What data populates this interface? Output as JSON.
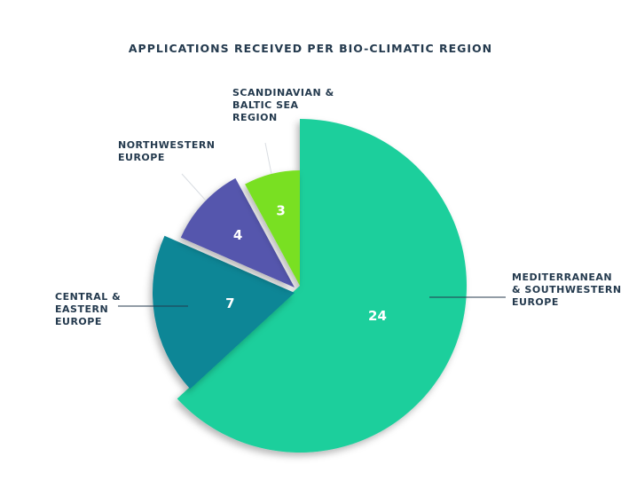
{
  "chart_data": {
    "type": "pie",
    "title": "APPLICATIONS RECEIVED PER BIO-CLIMATIC REGION",
    "categories": [
      "MEDITERRANEAN & SOUTHWESTERN EUROPE",
      "CENTRAL & EASTERN EUROPE",
      "NORTHWESTERN EUROPE",
      "SCANDINAVIAN & BALTIC SEA REGION"
    ],
    "category_lines": [
      [
        "MEDITERRANEAN",
        "& SOUTHWESTERN",
        "EUROPE"
      ],
      [
        "CENTRAL &",
        "EASTERN",
        "EUROPE"
      ],
      [
        "NORTHWESTERN",
        "EUROPE"
      ],
      [
        "SCANDINAVIAN &",
        "BALTIC SEA",
        "REGION"
      ]
    ],
    "values": [
      24,
      7,
      4,
      3
    ],
    "value_labels": [
      "24",
      "7",
      "4",
      "3"
    ],
    "colors": [
      "#1dcf9c",
      "#0a8696",
      "#5557ad",
      "#79e021"
    ],
    "legend": "none",
    "grid": false
  }
}
